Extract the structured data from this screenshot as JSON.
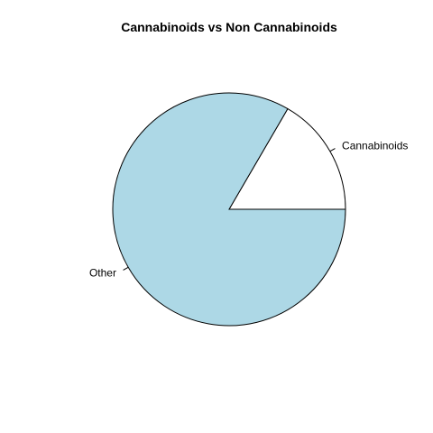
{
  "chart_data": {
    "type": "pie",
    "title": "Cannabinoids vs Non Cannabinoids",
    "slices": [
      {
        "label": "Cannabinoids",
        "value": 16.6,
        "color": "#ffffff"
      },
      {
        "label": "Other",
        "value": 83.4,
        "color": "#add8e6"
      }
    ],
    "start_angle_deg": 0,
    "direction": "counterclockwise",
    "border_color": "#000000"
  }
}
